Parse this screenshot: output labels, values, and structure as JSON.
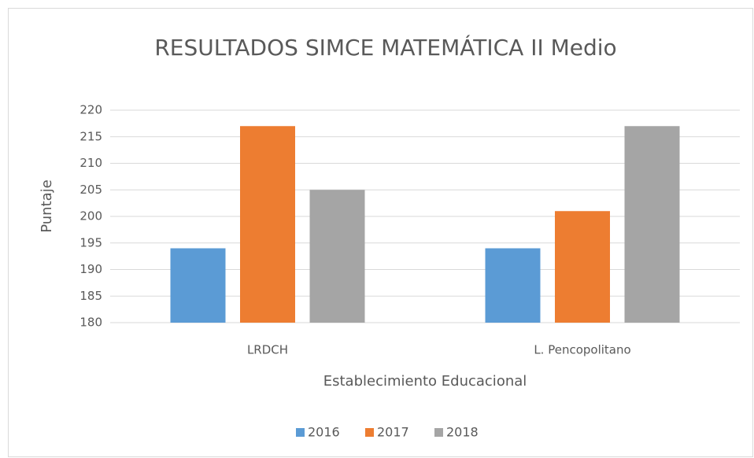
{
  "chart_data": {
    "type": "bar",
    "title": "RESULTADOS SIMCE MATEMÁTICA II Medio",
    "x_label": "Establecimiento Educacional",
    "y_label": "Puntaje",
    "categories": [
      "LRDCH",
      "L. Pencopolitano"
    ],
    "series": [
      {
        "name": "2016",
        "color": "#5b9bd5",
        "values": [
          194,
          194
        ]
      },
      {
        "name": "2017",
        "color": "#ed7d31",
        "values": [
          217,
          201
        ]
      },
      {
        "name": "2018",
        "color": "#a5a5a5",
        "values": [
          205,
          217
        ]
      }
    ],
    "ylim": [
      180,
      220
    ],
    "yticks": [
      180,
      185,
      190,
      195,
      200,
      205,
      210,
      215,
      220
    ],
    "grid": true,
    "legend": "bottom"
  }
}
